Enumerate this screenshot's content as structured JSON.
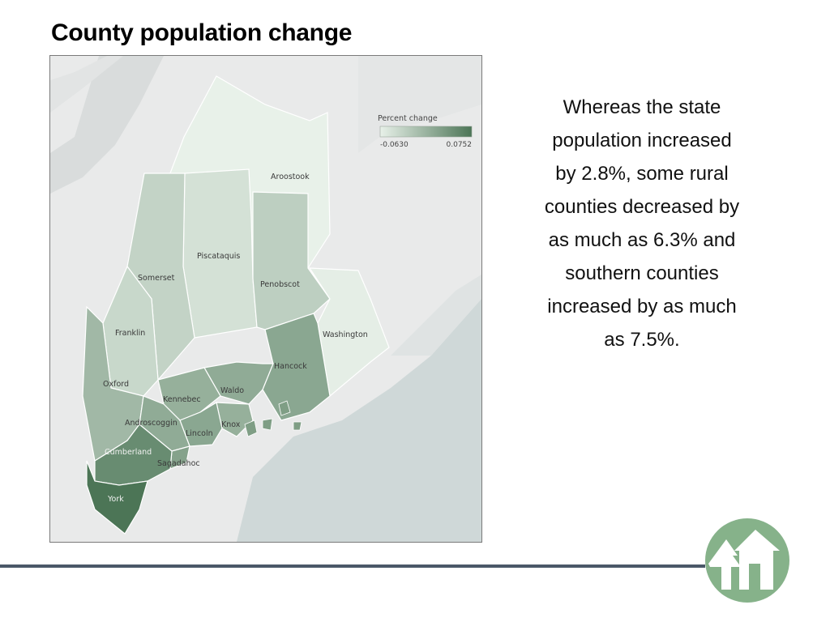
{
  "slide": {
    "title": "County population change",
    "body_text": "Whereas the state population increased by 2.8%, some rural counties decreased by as much as 6.3% and southern counties increased by as much as 7.5%."
  },
  "map": {
    "legend": {
      "title": "Percent change",
      "min_label": "-0.0630",
      "max_label": "0.0752",
      "min": -0.063,
      "max": 0.0752,
      "color_low": "#e8f1e9",
      "color_high": "#4c7556"
    },
    "counties": [
      {
        "id": "aroostook",
        "name": "Aroostook",
        "change": -0.063
      },
      {
        "id": "piscataquis",
        "name": "Piscataquis",
        "change": -0.045
      },
      {
        "id": "somerset",
        "name": "Somerset",
        "change": -0.03
      },
      {
        "id": "penobscot",
        "name": "Penobscot",
        "change": -0.025
      },
      {
        "id": "washington",
        "name": "Washington",
        "change": -0.06
      },
      {
        "id": "franklin",
        "name": "Franklin",
        "change": -0.035
      },
      {
        "id": "oxford",
        "name": "Oxford",
        "change": 0.0
      },
      {
        "id": "hancock",
        "name": "Hancock",
        "change": 0.02
      },
      {
        "id": "waldo",
        "name": "Waldo",
        "change": 0.015
      },
      {
        "id": "kennebec",
        "name": "Kennebec",
        "change": 0.01
      },
      {
        "id": "knox",
        "name": "Knox",
        "change": 0.01
      },
      {
        "id": "lincoln",
        "name": "Lincoln",
        "change": 0.02
      },
      {
        "id": "androscoggin",
        "name": "Androscoggin",
        "change": 0.015
      },
      {
        "id": "sagadahoc",
        "name": "Sagadahoc",
        "change": 0.025
      },
      {
        "id": "cumberland",
        "name": "Cumberland",
        "change": 0.05
      },
      {
        "id": "york",
        "name": "York",
        "change": 0.0752
      }
    ]
  }
}
